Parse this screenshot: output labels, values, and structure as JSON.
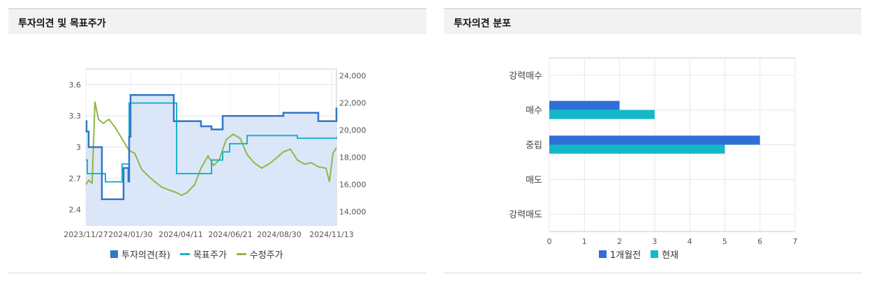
{
  "left_panel": {
    "title": "투자의견 및 목표주가",
    "legend": [
      {
        "label": "투자의견(좌)",
        "color": "#3276c8",
        "marker": "box"
      },
      {
        "label": "목표주가",
        "color": "#1bb3c8",
        "marker": "line"
      },
      {
        "label": "수정주가",
        "color": "#8db844",
        "marker": "line"
      }
    ]
  },
  "right_panel": {
    "title": "투자의견 분포",
    "legend": [
      {
        "label": "1개월전",
        "color": "#2e6fd6"
      },
      {
        "label": "현재",
        "color": "#15b8c8"
      }
    ]
  },
  "chart_data": [
    {
      "type": "line",
      "x_tick_labels": [
        "2023/11/27",
        "2024/01/30",
        "2024/04/11",
        "2024/06/21",
        "2024/08/30",
        "2024/11/13"
      ],
      "left_axis": {
        "ticks": [
          "3.6",
          "3.3",
          "3",
          "2.7",
          "2.4"
        ],
        "ylim": [
          2.25,
          3.75
        ]
      },
      "right_axis": {
        "ticks": [
          "24,000",
          "22,000",
          "20,000",
          "18,000",
          "16,000",
          "14,000"
        ],
        "ylim": [
          13000,
          24500
        ]
      },
      "series": [
        {
          "name": "투자의견(좌)",
          "axis": "left",
          "color": "#3276c8",
          "area_fill": "#dbe6f8",
          "x": [
            "2023-11-27",
            "2023-11-28",
            "2023-12-01",
            "2023-12-05",
            "2023-12-20",
            "2024-01-10",
            "2024-01-20",
            "2024-01-25",
            "2024-01-27",
            "2024-01-28",
            "2024-01-30",
            "2024-02-01",
            "2024-03-15",
            "2024-04-01",
            "2024-04-15",
            "2024-05-10",
            "2024-05-25",
            "2024-06-01",
            "2024-06-10",
            "2024-09-01",
            "2024-09-05",
            "2024-10-25",
            "2024-11-15",
            "2024-11-20"
          ],
          "y": [
            3.25,
            3.15,
            3.0,
            3.0,
            2.5,
            2.5,
            2.8,
            2.8,
            2.67,
            3.1,
            3.5,
            3.5,
            3.5,
            3.25,
            3.25,
            3.2,
            3.17,
            3.17,
            3.3,
            3.3,
            3.33,
            3.25,
            3.25,
            3.38
          ]
        },
        {
          "name": "목표주가",
          "axis": "right",
          "color": "#1bb3c8",
          "x": [
            "2023-11-27",
            "2023-11-29",
            "2023-12-15",
            "2023-12-25",
            "2024-01-10",
            "2024-01-18",
            "2024-01-28",
            "2024-02-05",
            "2024-03-20",
            "2024-04-05",
            "2024-04-15",
            "2024-05-05",
            "2024-05-25",
            "2024-06-10",
            "2024-06-20",
            "2024-06-30",
            "2024-07-15",
            "2024-08-05",
            "2024-09-05",
            "2024-09-25",
            "2024-10-10",
            "2024-11-15",
            "2024-11-20"
          ],
          "y": [
            17800,
            16800,
            16800,
            16200,
            16200,
            17500,
            22000,
            22000,
            22000,
            16800,
            16800,
            16800,
            17800,
            18400,
            19000,
            19000,
            19600,
            19600,
            19600,
            19400,
            19400,
            19400,
            19500
          ]
        },
        {
          "name": "수정주가",
          "axis": "right",
          "color": "#8db844",
          "x": [
            "2023-11-27",
            "2023-12-01",
            "2023-12-06",
            "2023-12-10",
            "2023-12-15",
            "2023-12-22",
            "2023-12-30",
            "2024-01-08",
            "2024-01-15",
            "2024-01-22",
            "2024-01-28",
            "2024-02-05",
            "2024-02-15",
            "2024-02-25",
            "2024-03-05",
            "2024-03-15",
            "2024-03-25",
            "2024-04-05",
            "2024-04-12",
            "2024-04-20",
            "2024-05-01",
            "2024-05-10",
            "2024-05-20",
            "2024-05-28",
            "2024-06-05",
            "2024-06-15",
            "2024-06-25",
            "2024-07-05",
            "2024-07-15",
            "2024-07-25",
            "2024-08-05",
            "2024-08-15",
            "2024-08-25",
            "2024-09-05",
            "2024-09-15",
            "2024-09-25",
            "2024-10-05",
            "2024-10-15",
            "2024-10-25",
            "2024-11-05",
            "2024-11-10",
            "2024-11-15",
            "2024-11-20"
          ],
          "y": [
            16000,
            16300,
            16100,
            22100,
            20800,
            20500,
            20800,
            20200,
            19600,
            19000,
            18500,
            18300,
            17100,
            16600,
            16200,
            15800,
            15600,
            15400,
            15200,
            15400,
            16000,
            17200,
            18100,
            17400,
            17800,
            19300,
            19700,
            19400,
            18200,
            17600,
            17200,
            17500,
            17900,
            18400,
            18600,
            17800,
            17500,
            17600,
            17300,
            17200,
            16200,
            18300,
            18700
          ]
        }
      ]
    },
    {
      "type": "bar",
      "orientation": "horizontal",
      "categories": [
        "강력매수",
        "매수",
        "중립",
        "매도",
        "강력매도"
      ],
      "series": [
        {
          "name": "1개월전",
          "values": [
            0,
            2,
            6,
            0,
            0
          ],
          "color": "#2e6fd6"
        },
        {
          "name": "현재",
          "values": [
            0,
            3,
            5,
            0,
            0
          ],
          "color": "#15b8c8"
        }
      ],
      "x_ticks": [
        "0",
        "1",
        "2",
        "3",
        "4",
        "5",
        "6",
        "7"
      ],
      "xlim": [
        0,
        7
      ],
      "grid": true
    }
  ]
}
